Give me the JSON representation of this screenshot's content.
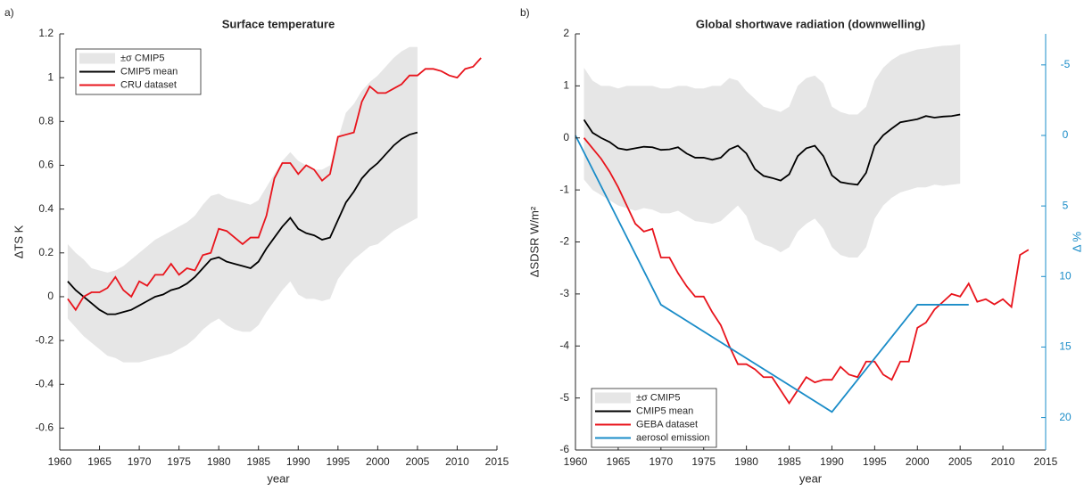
{
  "chart_data": [
    {
      "type": "line",
      "label": "a)",
      "title": "Surface temperature",
      "xlabel": "year",
      "ylabel": "ΔTS K",
      "xlim": [
        1960,
        2015
      ],
      "xticks": [
        1960,
        1965,
        1970,
        1975,
        1980,
        1985,
        1990,
        1995,
        2000,
        2005,
        2010,
        2015
      ],
      "ylim": [
        -0.7,
        1.2
      ],
      "yticks": [
        -0.6,
        -0.4,
        -0.2,
        0,
        0.2,
        0.4,
        0.6,
        0.8,
        1,
        1.2
      ],
      "legend": "upper left",
      "x": [
        1961,
        1962,
        1963,
        1964,
        1965,
        1966,
        1967,
        1968,
        1969,
        1970,
        1971,
        1972,
        1973,
        1974,
        1975,
        1976,
        1977,
        1978,
        1979,
        1980,
        1981,
        1982,
        1983,
        1984,
        1985,
        1986,
        1987,
        1988,
        1989,
        1990,
        1991,
        1992,
        1993,
        1994,
        1995,
        1996,
        1997,
        1998,
        1999,
        2000,
        2001,
        2002,
        2003,
        2004,
        2005,
        2006,
        2007,
        2008,
        2009,
        2010,
        2011,
        2012,
        2013
      ],
      "series": [
        {
          "name": "±σ CMIP5",
          "kind": "band",
          "color": "#e6e6e6",
          "lower": [
            -0.1,
            -0.14,
            -0.18,
            -0.21,
            -0.24,
            -0.27,
            -0.28,
            -0.3,
            -0.3,
            -0.3,
            -0.29,
            -0.28,
            -0.27,
            -0.26,
            -0.24,
            -0.22,
            -0.19,
            -0.15,
            -0.12,
            -0.1,
            -0.13,
            -0.15,
            -0.16,
            -0.16,
            -0.13,
            -0.07,
            -0.02,
            0.03,
            0.07,
            0.01,
            -0.01,
            -0.01,
            -0.02,
            -0.01,
            0.08,
            0.13,
            0.17,
            0.2,
            0.23,
            0.24,
            0.27,
            0.3,
            0.32,
            0.34,
            0.36,
            null,
            null,
            null,
            null,
            null,
            null,
            null,
            null
          ],
          "upper": [
            0.24,
            0.2,
            0.17,
            0.13,
            0.12,
            0.11,
            0.12,
            0.14,
            0.17,
            0.2,
            0.23,
            0.26,
            0.28,
            0.3,
            0.32,
            0.34,
            0.37,
            0.42,
            0.46,
            0.47,
            0.45,
            0.44,
            0.43,
            0.42,
            0.44,
            0.5,
            0.56,
            0.62,
            0.66,
            0.62,
            0.6,
            0.58,
            0.58,
            0.6,
            0.72,
            0.84,
            0.88,
            0.94,
            0.98,
            1.01,
            1.05,
            1.09,
            1.12,
            1.14,
            1.14,
            null,
            null,
            null,
            null,
            null,
            null,
            null,
            null
          ]
        },
        {
          "name": "CMIP5 mean",
          "color": "#000000",
          "values": [
            0.07,
            0.03,
            0.0,
            -0.03,
            -0.06,
            -0.08,
            -0.08,
            -0.07,
            -0.06,
            -0.04,
            -0.02,
            0.0,
            0.01,
            0.03,
            0.04,
            0.06,
            0.09,
            0.13,
            0.17,
            0.18,
            0.16,
            0.15,
            0.14,
            0.13,
            0.16,
            0.22,
            0.27,
            0.32,
            0.36,
            0.31,
            0.29,
            0.28,
            0.26,
            0.27,
            0.35,
            0.43,
            0.48,
            0.54,
            0.58,
            0.61,
            0.65,
            0.69,
            0.72,
            0.74,
            0.75,
            null,
            null,
            null,
            null,
            null,
            null,
            null,
            null
          ]
        },
        {
          "name": "CRU dataset",
          "color": "#e8141c",
          "values": [
            -0.01,
            -0.06,
            0.0,
            0.02,
            0.02,
            0.04,
            0.09,
            0.03,
            0.0,
            0.07,
            0.05,
            0.1,
            0.1,
            0.15,
            0.1,
            0.13,
            0.12,
            0.19,
            0.2,
            0.31,
            0.3,
            0.27,
            0.24,
            0.27,
            0.27,
            0.37,
            0.54,
            0.61,
            0.61,
            0.56,
            0.6,
            0.58,
            0.53,
            0.56,
            0.73,
            0.74,
            0.75,
            0.89,
            0.96,
            0.93,
            0.93,
            0.95,
            0.97,
            1.01,
            1.01,
            1.04,
            1.04,
            1.03,
            1.01,
            1.0,
            1.04,
            1.05,
            1.09
          ]
        }
      ]
    },
    {
      "type": "line",
      "label": "b)",
      "title": "Global shortwave radiation (downwelling)",
      "xlabel": "year",
      "ylabel": "ΔSDSR W/m²",
      "y2label": "Δ %",
      "xlim": [
        1960,
        2015
      ],
      "xticks": [
        1960,
        1965,
        1970,
        1975,
        1980,
        1985,
        1990,
        1995,
        2000,
        2005,
        2010,
        2015
      ],
      "ylim": [
        -6,
        2
      ],
      "yticks": [
        -6,
        -5,
        -4,
        -3,
        -2,
        -1,
        0,
        1,
        2
      ],
      "y2lim": [
        -7.2,
        22.3
      ],
      "y2ticks": [
        -5,
        0,
        5,
        10,
        15,
        20
      ],
      "y2_direction": "reverse",
      "y2color": "#1a8cc8",
      "legend": "lower left",
      "x": [
        1961,
        1962,
        1963,
        1964,
        1965,
        1966,
        1967,
        1968,
        1969,
        1970,
        1971,
        1972,
        1973,
        1974,
        1975,
        1976,
        1977,
        1978,
        1979,
        1980,
        1981,
        1982,
        1983,
        1984,
        1985,
        1986,
        1987,
        1988,
        1989,
        1990,
        1991,
        1992,
        1993,
        1994,
        1995,
        1996,
        1997,
        1998,
        1999,
        2000,
        2001,
        2002,
        2003,
        2004,
        2005,
        2006,
        2007,
        2008,
        2009,
        2010,
        2011,
        2012,
        2013
      ],
      "series": [
        {
          "name": "±σ CMIP5",
          "kind": "band",
          "color": "#e6e6e6",
          "lower": [
            -0.8,
            -1.0,
            -1.1,
            -1.2,
            -1.3,
            -1.35,
            -1.4,
            -1.35,
            -1.38,
            -1.45,
            -1.45,
            -1.4,
            -1.5,
            -1.6,
            -1.62,
            -1.65,
            -1.6,
            -1.45,
            -1.3,
            -1.5,
            -1.95,
            -2.05,
            -2.1,
            -2.2,
            -2.1,
            -1.8,
            -1.65,
            -1.55,
            -1.75,
            -2.1,
            -2.25,
            -2.3,
            -2.3,
            -2.1,
            -1.55,
            -1.3,
            -1.15,
            -1.05,
            -1.0,
            -0.95,
            -0.95,
            -0.9,
            -0.92,
            -0.9,
            -0.88,
            null,
            null,
            null,
            null,
            null,
            null,
            null,
            null
          ],
          "upper": [
            1.35,
            1.1,
            1.0,
            1.0,
            0.95,
            1.0,
            1.0,
            1.0,
            1.0,
            0.95,
            0.95,
            1.0,
            1.0,
            0.95,
            0.95,
            1.0,
            1.0,
            1.15,
            1.1,
            0.9,
            0.75,
            0.6,
            0.55,
            0.5,
            0.6,
            1.0,
            1.15,
            1.2,
            1.05,
            0.6,
            0.5,
            0.45,
            0.45,
            0.6,
            1.1,
            1.35,
            1.5,
            1.6,
            1.65,
            1.7,
            1.72,
            1.75,
            1.77,
            1.78,
            1.8,
            null,
            null,
            null,
            null,
            null,
            null,
            null,
            null
          ]
        },
        {
          "name": "CMIP5 mean",
          "color": "#000000",
          "values": [
            0.35,
            0.1,
            0.0,
            -0.08,
            -0.2,
            -0.23,
            -0.2,
            -0.17,
            -0.18,
            -0.23,
            -0.22,
            -0.18,
            -0.3,
            -0.38,
            -0.38,
            -0.42,
            -0.38,
            -0.22,
            -0.15,
            -0.3,
            -0.6,
            -0.73,
            -0.77,
            -0.82,
            -0.7,
            -0.35,
            -0.2,
            -0.15,
            -0.35,
            -0.72,
            -0.85,
            -0.88,
            -0.9,
            -0.67,
            -0.15,
            0.05,
            0.18,
            0.3,
            0.33,
            0.36,
            0.42,
            0.39,
            0.41,
            0.42,
            0.45,
            null,
            null,
            null,
            null,
            null,
            null,
            null,
            null
          ]
        },
        {
          "name": "GEBA dataset",
          "color": "#e8141c",
          "values": [
            0.0,
            -0.2,
            -0.4,
            -0.65,
            -0.95,
            -1.3,
            -1.65,
            -1.8,
            -1.75,
            -2.3,
            -2.3,
            -2.6,
            -2.85,
            -3.05,
            -3.05,
            -3.35,
            -3.6,
            -4.0,
            -4.35,
            -4.35,
            -4.45,
            -4.6,
            -4.6,
            -4.85,
            -5.1,
            -4.85,
            -4.6,
            -4.7,
            -4.65,
            -4.65,
            -4.4,
            -4.55,
            -4.6,
            -4.3,
            -4.3,
            -4.55,
            -4.65,
            -4.3,
            -4.3,
            -3.65,
            -3.55,
            -3.3,
            -3.15,
            -3.0,
            -3.05,
            -2.8,
            -3.15,
            -3.1,
            -3.2,
            -3.1,
            -3.25,
            -2.25,
            -2.15
          ]
        },
        {
          "name": "aerosol emission",
          "color": "#1a8cc8",
          "axis": "y2",
          "x": [
            1960,
            1970,
            1990,
            2000,
            2006
          ],
          "values": [
            0,
            12,
            19.6,
            12,
            12
          ]
        }
      ]
    }
  ]
}
